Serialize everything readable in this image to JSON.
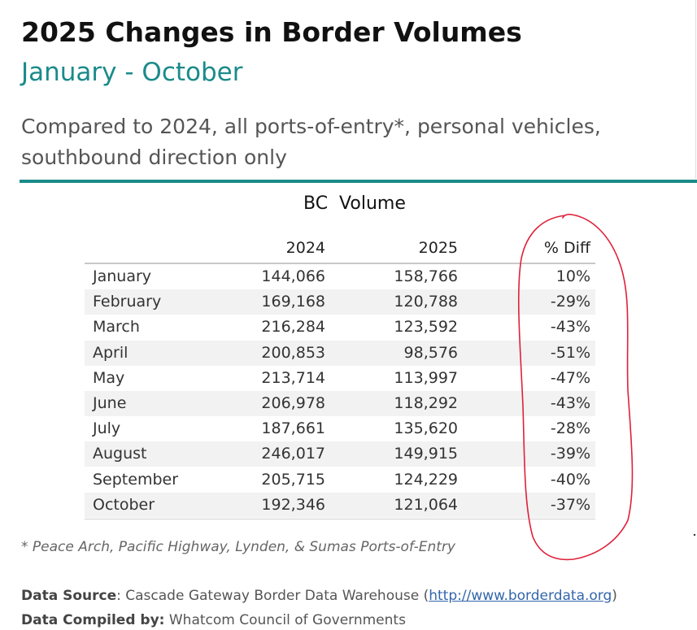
{
  "header": {
    "title": "2025 Changes in Border Volumes",
    "subtitle": "January - October",
    "description": "Compared to 2024, all ports-of-entry*, personal vehicles, southbound direction only"
  },
  "colors": {
    "accent": "#1b8a8a",
    "row_shade": "#f2f2f2",
    "annotation": "#e0203a",
    "link": "#3366aa"
  },
  "chart_data": {
    "type": "table",
    "title": "BC  Volume",
    "columns": [
      "2024",
      "2025",
      "% Diff"
    ],
    "rows": [
      {
        "month": "January",
        "v2024": "144,066",
        "v2025": "158,766",
        "diff": "10%"
      },
      {
        "month": "February",
        "v2024": "169,168",
        "v2025": "120,788",
        "diff": "-29%"
      },
      {
        "month": "March",
        "v2024": "216,284",
        "v2025": "123,592",
        "diff": "-43%"
      },
      {
        "month": "April",
        "v2024": "200,853",
        "v2025": "98,576",
        "diff": "-51%"
      },
      {
        "month": "May",
        "v2024": "213,714",
        "v2025": "113,997",
        "diff": "-47%"
      },
      {
        "month": "June",
        "v2024": "206,978",
        "v2025": "118,292",
        "diff": "-43%"
      },
      {
        "month": "July",
        "v2024": "187,661",
        "v2025": "135,620",
        "diff": "-28%"
      },
      {
        "month": "August",
        "v2024": "246,017",
        "v2025": "149,915",
        "diff": "-39%"
      },
      {
        "month": "September",
        "v2024": "205,715",
        "v2025": "124,229",
        "diff": "-40%"
      },
      {
        "month": "October",
        "v2024": "192,346",
        "v2025": "121,064",
        "diff": "-37%"
      }
    ],
    "annotation": "hand-drawn red circle around % Diff column"
  },
  "footnote": "* Peace Arch, Pacific Highway, Lynden, & Sumas Ports-of-Entry",
  "sources": {
    "data_source_label": "Data Source",
    "data_source_text": ": Cascade Gateway Border Data Warehouse (",
    "data_source_link": "http://www.borderdata.org",
    "data_source_close": ")",
    "compiled_label": "Data Compiled by:",
    "compiled_text": " Whatcom Council of Governments"
  }
}
